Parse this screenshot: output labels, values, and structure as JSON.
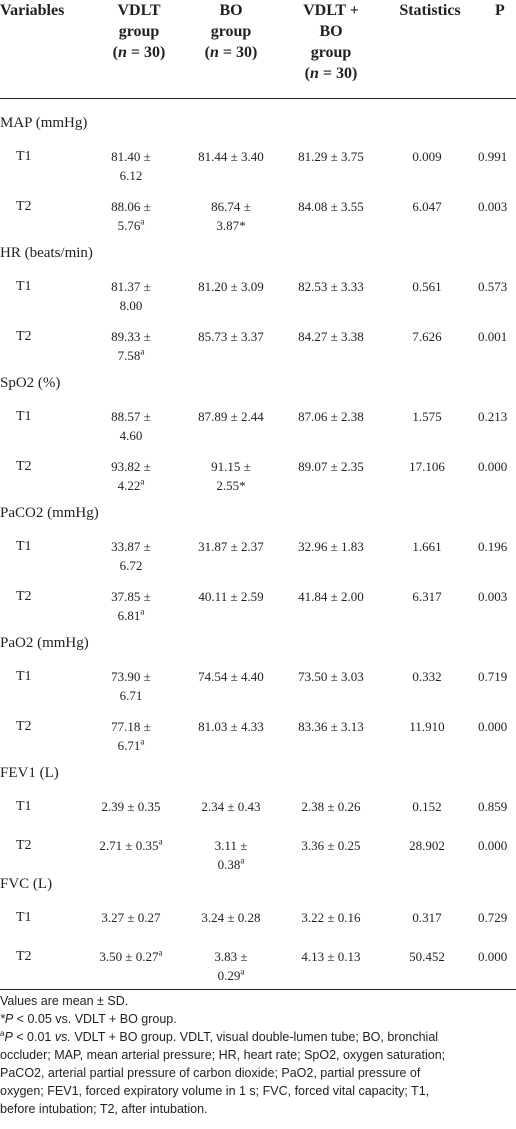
{
  "headers": {
    "variables": "Variables",
    "vdlt": [
      "VDLT",
      "group",
      "(n = 30)"
    ],
    "bo": [
      "BO",
      "group",
      "(n = 30)"
    ],
    "combo": [
      "VDLT +",
      "BO",
      "group",
      "(n = 30)"
    ],
    "statistics": "Statistics",
    "p": "P"
  },
  "groups": [
    {
      "name": "MAP (mmHg)",
      "rows": [
        {
          "label": "T1",
          "vdlt": [
            "81.40 ±",
            "6.12"
          ],
          "vdlt_sup": "",
          "bo": [
            "81.44 ± 3.40"
          ],
          "bo_sup": "",
          "combo": "81.29 ± 3.75",
          "stat": "0.009",
          "p": "0.991"
        },
        {
          "label": "T2",
          "vdlt": [
            "88.06 ±",
            "5.76"
          ],
          "vdlt_sup": "a",
          "bo": [
            "86.74 ±",
            "3.87*"
          ],
          "bo_sup": "",
          "combo": "84.08 ± 3.55",
          "stat": "6.047",
          "p": "0.003"
        }
      ]
    },
    {
      "name": "HR (beats/min)",
      "rows": [
        {
          "label": "T1",
          "vdlt": [
            "81.37 ±",
            "8.00"
          ],
          "vdlt_sup": "",
          "bo": [
            "81.20 ± 3.09"
          ],
          "bo_sup": "",
          "combo": "82.53 ± 3.33",
          "stat": "0.561",
          "p": "0.573"
        },
        {
          "label": "T2",
          "vdlt": [
            "89.33 ±",
            "7.58"
          ],
          "vdlt_sup": "a",
          "bo": [
            "85.73 ± 3.37"
          ],
          "bo_sup": "",
          "combo": "84.27 ± 3.38",
          "stat": "7.626",
          "p": "0.001"
        }
      ]
    },
    {
      "name": "SpO2 (%)",
      "rows": [
        {
          "label": "T1",
          "vdlt": [
            "88.57 ±",
            "4.60"
          ],
          "vdlt_sup": "",
          "bo": [
            "87.89 ± 2.44"
          ],
          "bo_sup": "",
          "combo": "87.06 ± 2.38",
          "stat": "1.575",
          "p": "0.213"
        },
        {
          "label": "T2",
          "vdlt": [
            "93.82 ±",
            "4.22"
          ],
          "vdlt_sup": "a",
          "bo": [
            "91.15 ±",
            "2.55*"
          ],
          "bo_sup": "",
          "combo": "89.07 ± 2.35",
          "stat": "17.106",
          "p": "0.000"
        }
      ]
    },
    {
      "name": "PaCO2 (mmHg)",
      "rows": [
        {
          "label": "T1",
          "vdlt": [
            "33.87 ±",
            "6.72"
          ],
          "vdlt_sup": "",
          "bo": [
            "31.87 ± 2.37"
          ],
          "bo_sup": "",
          "combo": "32.96 ± 1.83",
          "stat": "1.661",
          "p": "0.196"
        },
        {
          "label": "T2",
          "vdlt": [
            "37.85 ±",
            "6.81"
          ],
          "vdlt_sup": "a",
          "bo": [
            "40.11 ± 2.59"
          ],
          "bo_sup": "",
          "combo": "41.84 ± 2.00",
          "stat": "6.317",
          "p": "0.003"
        }
      ]
    },
    {
      "name": "PaO2 (mmHg)",
      "rows": [
        {
          "label": "T1",
          "vdlt": [
            "73.90 ±",
            "6.71"
          ],
          "vdlt_sup": "",
          "bo": [
            "74.54 ± 4.40"
          ],
          "bo_sup": "",
          "combo": "73.50 ± 3.03",
          "stat": "0.332",
          "p": "0.719"
        },
        {
          "label": "T2",
          "vdlt": [
            "77.18 ±",
            "6.71"
          ],
          "vdlt_sup": "a",
          "bo": [
            "81.03 ± 4.33"
          ],
          "bo_sup": "",
          "combo": "83.36 ± 3.13",
          "stat": "11.910",
          "p": "0.000"
        }
      ]
    },
    {
      "name": "FEV1 (L)",
      "rows": [
        {
          "label": "T1",
          "vdlt": [
            "2.39 ± 0.35"
          ],
          "vdlt_sup": "",
          "bo": [
            "2.34 ± 0.43"
          ],
          "bo_sup": "",
          "combo": "2.38 ± 0.26",
          "stat": "0.152",
          "p": "0.859"
        },
        {
          "label": "T2",
          "vdlt": [
            "2.71 ± 0.35"
          ],
          "vdlt_sup": "a",
          "bo": [
            "3.11 ±",
            "0.38"
          ],
          "bo_sup": "a",
          "combo": "3.36 ± 0.25",
          "stat": "28.902",
          "p": "0.000"
        }
      ]
    },
    {
      "name": "FVC (L)",
      "rows": [
        {
          "label": "T1",
          "vdlt": [
            "3.27 ± 0.27"
          ],
          "vdlt_sup": "",
          "bo": [
            "3.24 ± 0.28"
          ],
          "bo_sup": "",
          "combo": "3.22 ± 0.16",
          "stat": "0.317",
          "p": "0.729"
        },
        {
          "label": "T2",
          "vdlt": [
            "3.50 ± 0.27"
          ],
          "vdlt_sup": "a",
          "bo": [
            "3.83 ±",
            "0.29"
          ],
          "bo_sup": "a",
          "combo": "4.13 ± 0.13",
          "stat": "50.452",
          "p": "0.000"
        }
      ]
    }
  ],
  "footnotes": {
    "line1": "Values are mean ± SD.",
    "line2_star": "*P",
    "line2_rest": " < 0.05 vs. VDLT + BO group.",
    "line3_sup": "a",
    "line3_p": "P",
    "line3_mid": " < 0.01 ",
    "line3_vs": "vs.",
    "line3_rest": " VDLT + BO group. VDLT, visual double-lumen tube; BO, bronchial",
    "line4": "occluder; MAP, mean arterial pressure; HR, heart rate; SpO2, oxygen saturation;",
    "line5": "PaCO2, arterial partial pressure of carbon dioxide; PaO2, partial pressure of",
    "line6": "oxygen; FEV1, forced expiratory volume in 1 s; FVC, forced vital capacity; T1,",
    "line7": "before intubation; T2, after intubation."
  }
}
